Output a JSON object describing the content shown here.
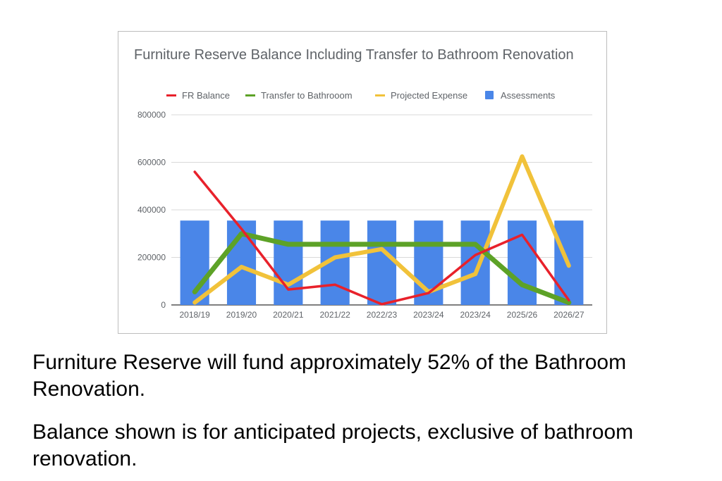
{
  "chart_data": {
    "type": "bar+line",
    "title": "Furniture Reserve Balance Including Transfer to Bathroom Renovation",
    "categories": [
      "2018/19",
      "2019/20",
      "2020/21",
      "2021/22",
      "2022/23",
      "2023/24",
      "2023/24",
      "2025/26",
      "2026/27"
    ],
    "ylim": [
      0,
      800000
    ],
    "yticks": [
      "0",
      "200000",
      "400000",
      "600000",
      "800000"
    ],
    "ytick_values": [
      0,
      200000,
      400000,
      600000,
      800000
    ],
    "grid": true,
    "legend_position": "top",
    "series": [
      {
        "name": "FR Balance",
        "kind": "line",
        "color": "#e8212b",
        "values": [
          560000,
          320000,
          65000,
          85000,
          3000,
          50000,
          210000,
          295000,
          20000
        ]
      },
      {
        "name": "Transfer to Bathrooom",
        "kind": "line",
        "color": "#5da227",
        "values": [
          55000,
          300000,
          255000,
          255000,
          255000,
          255000,
          255000,
          85000,
          10000
        ]
      },
      {
        "name": "Projected Expense",
        "kind": "line",
        "color": "#f1c23a",
        "values": [
          10000,
          160000,
          85000,
          200000,
          235000,
          55000,
          130000,
          625000,
          165000
        ]
      },
      {
        "name": "Assessments",
        "kind": "bar",
        "color": "#4a86e8",
        "values": [
          355000,
          355000,
          355000,
          355000,
          355000,
          355000,
          355000,
          355000,
          355000
        ]
      }
    ]
  },
  "captions": {
    "line1": "Furniture Reserve will fund approximately 52% of the Bathroom Renovation.",
    "line2": "Balance shown is for anticipated projects, exclusive of bathroom renovation."
  }
}
